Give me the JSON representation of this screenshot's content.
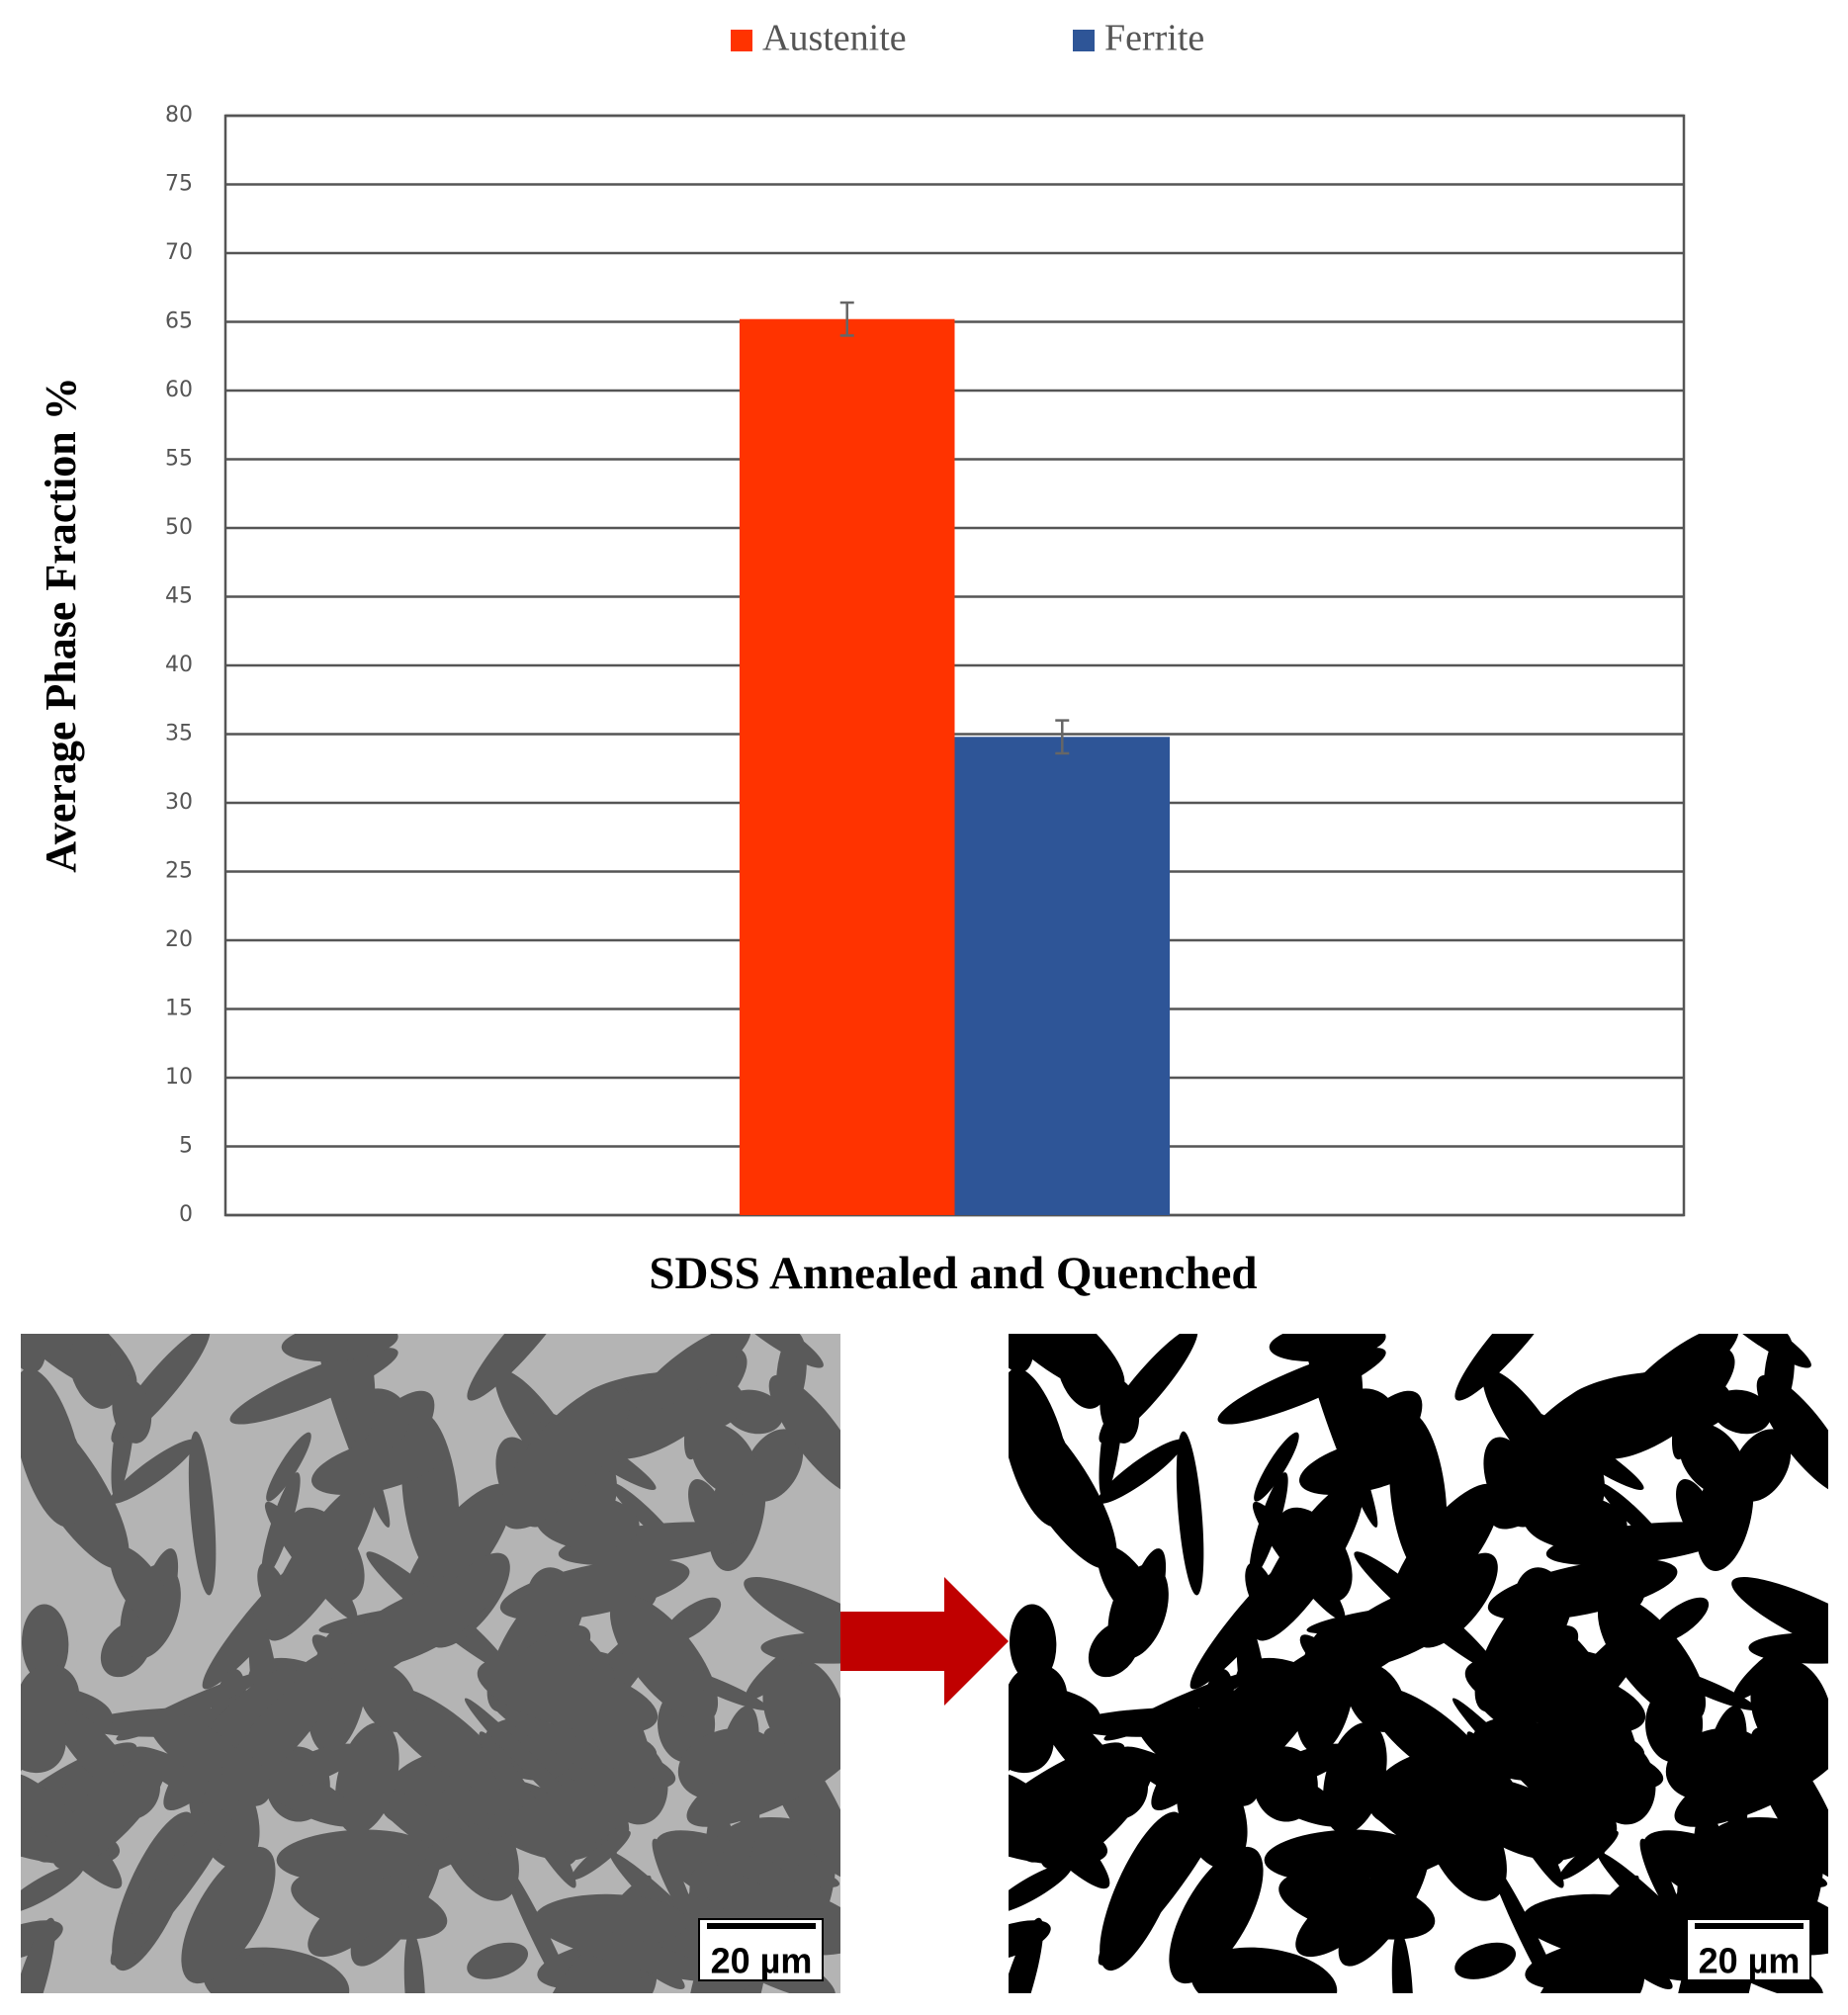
{
  "chart_data": {
    "type": "bar",
    "categories": [
      "SDSS Annealed and Quenched"
    ],
    "x_label": "SDSS Annealed and Quenched",
    "y_label": "Average Phase Fraction %",
    "series": [
      {
        "name": "Austenite",
        "color": "#ff3300",
        "values": [
          65.2
        ],
        "errors": [
          1.2
        ]
      },
      {
        "name": "Ferrite",
        "color": "#2e5597",
        "values": [
          34.8
        ],
        "errors": [
          1.2
        ]
      }
    ],
    "ylim": [
      0,
      80
    ],
    "yticks": [
      0,
      5,
      10,
      15,
      20,
      25,
      30,
      35,
      40,
      45,
      50,
      55,
      60,
      65,
      70,
      75,
      80
    ],
    "grid": true,
    "legend": "top"
  },
  "micrographs": [
    {
      "scale_bar": "20 µm"
    },
    {
      "scale_bar": "20 µm"
    }
  ]
}
